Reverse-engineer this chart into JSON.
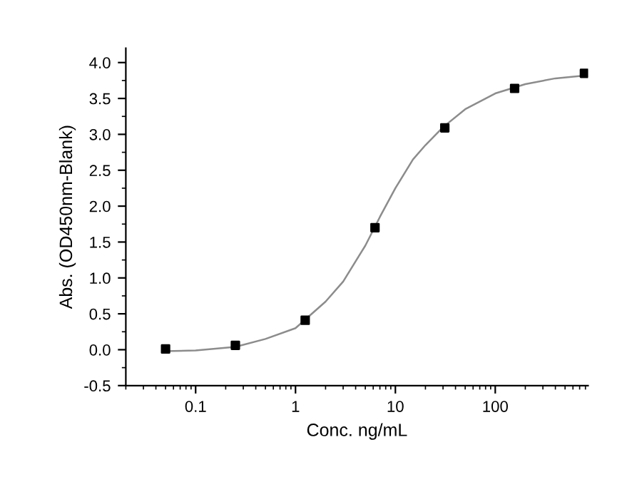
{
  "chart_data": {
    "type": "scatter",
    "xlabel": "Conc. ng/mL",
    "ylabel": "Abs. (OD450nm-Blank)",
    "log": "x",
    "xlim": [
      0.02,
      850
    ],
    "xticks": [
      0.1,
      1,
      10,
      100
    ],
    "ylim": [
      -0.5,
      4.2
    ],
    "yticks": [
      -0.5,
      {
        "value": 0,
        "label": "0.0"
      },
      0.5,
      {
        "value": 1,
        "label": "1.0"
      },
      1.5,
      {
        "value": 2,
        "label": "2.0"
      },
      2.5,
      {
        "value": 3,
        "label": "3.0"
      },
      3.5,
      {
        "value": 4,
        "label": "4.0"
      }
    ],
    "grid": false,
    "legend": false,
    "series": [
      {
        "type": "line",
        "color": "#8c8c8c",
        "marker": "none",
        "line_style": "solid",
        "x": [
          0.05,
          0.1,
          0.25,
          0.5,
          1,
          2,
          3,
          5,
          7,
          10,
          15,
          20,
          30,
          50,
          100,
          200,
          400,
          800
        ],
        "values": [
          -0.02,
          -0.01,
          0.04,
          0.15,
          0.3,
          0.67,
          0.95,
          1.45,
          1.85,
          2.25,
          2.65,
          2.85,
          3.1,
          3.35,
          3.57,
          3.7,
          3.78,
          3.82
        ]
      },
      {
        "color": "#000000",
        "marker": "square",
        "x": [
          0.05,
          0.25,
          1.25,
          6.25,
          31.25,
          156.25,
          781.25
        ],
        "values": [
          0.01,
          0.06,
          0.41,
          1.7,
          3.09,
          3.64,
          3.85
        ]
      }
    ]
  }
}
